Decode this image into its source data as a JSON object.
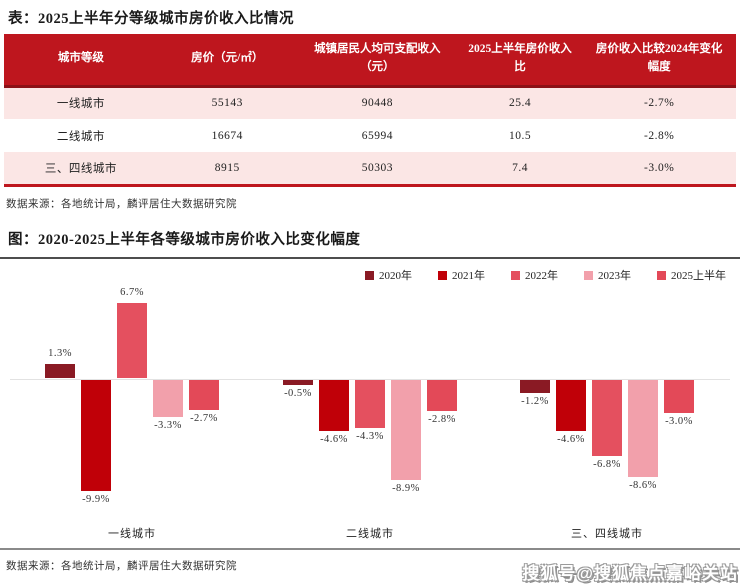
{
  "table": {
    "title": "表：2025上半年分等级城市房价收入比情况",
    "headers": [
      "城市等级",
      "房价（元/㎡）",
      "城镇居民人均可支配收入（元）",
      "2025上半年房价收入比",
      "房价收入比较2024年变化幅度"
    ],
    "rows": [
      {
        "cells": [
          "一线城市",
          "55143",
          "90448",
          "25.4",
          "-2.7%"
        ]
      },
      {
        "cells": [
          "二线城市",
          "16674",
          "65994",
          "10.5",
          "-2.8%"
        ]
      },
      {
        "cells": [
          "三、四线城市",
          "8915",
          "50303",
          "7.4",
          "-3.0%"
        ]
      }
    ],
    "source": "数据来源：各地统计局，麟评居住大数据研究院"
  },
  "chart": {
    "title": "图：2020-2025上半年各等级城市房价收入比变化幅度",
    "source": "数据来源：各地统计局，麟评居住大数据研究院"
  },
  "chart_data": {
    "type": "bar",
    "title": "2020-2025上半年各等级城市房价收入比变化幅度",
    "categories": [
      "一线城市",
      "二线城市",
      "三、四线城市"
    ],
    "series": [
      {
        "name": "2020年",
        "color": "#8A1A24",
        "values": [
          1.3,
          -0.5,
          -1.2
        ]
      },
      {
        "name": "2021年",
        "color": "#C00008",
        "values": [
          -9.9,
          -4.6,
          -4.6
        ]
      },
      {
        "name": "2022年",
        "color": "#E4505F",
        "values": [
          6.7,
          -4.3,
          -6.8
        ]
      },
      {
        "name": "2023年",
        "color": "#F2A0AB",
        "values": [
          -3.3,
          -8.9,
          -8.6
        ]
      },
      {
        "name": "2025上半年",
        "color": "#E34958",
        "values": [
          -2.7,
          -2.8,
          -3.0
        ]
      }
    ],
    "value_labels": [
      [
        "1.3%",
        "-9.9%",
        "6.7%",
        "-3.3%",
        "-2.7%"
      ],
      [
        "-0.5%",
        "-4.6%",
        "-4.3%",
        "-8.9%",
        "-2.8%"
      ],
      [
        "-1.2%",
        "-4.6%",
        "-6.8%",
        "-8.6%",
        "-3.0%"
      ]
    ],
    "ylim": [
      -10.5,
      7.5
    ],
    "grid": false,
    "legend_position": "top-right",
    "xlabel": "",
    "ylabel": ""
  },
  "colors": {
    "header_red": "#BE161E",
    "row_pink": "#FBE6E5",
    "border_red": "#BE161E"
  },
  "watermark": {
    "text": "搜狐号@搜狐焦点嘉峪关站"
  }
}
